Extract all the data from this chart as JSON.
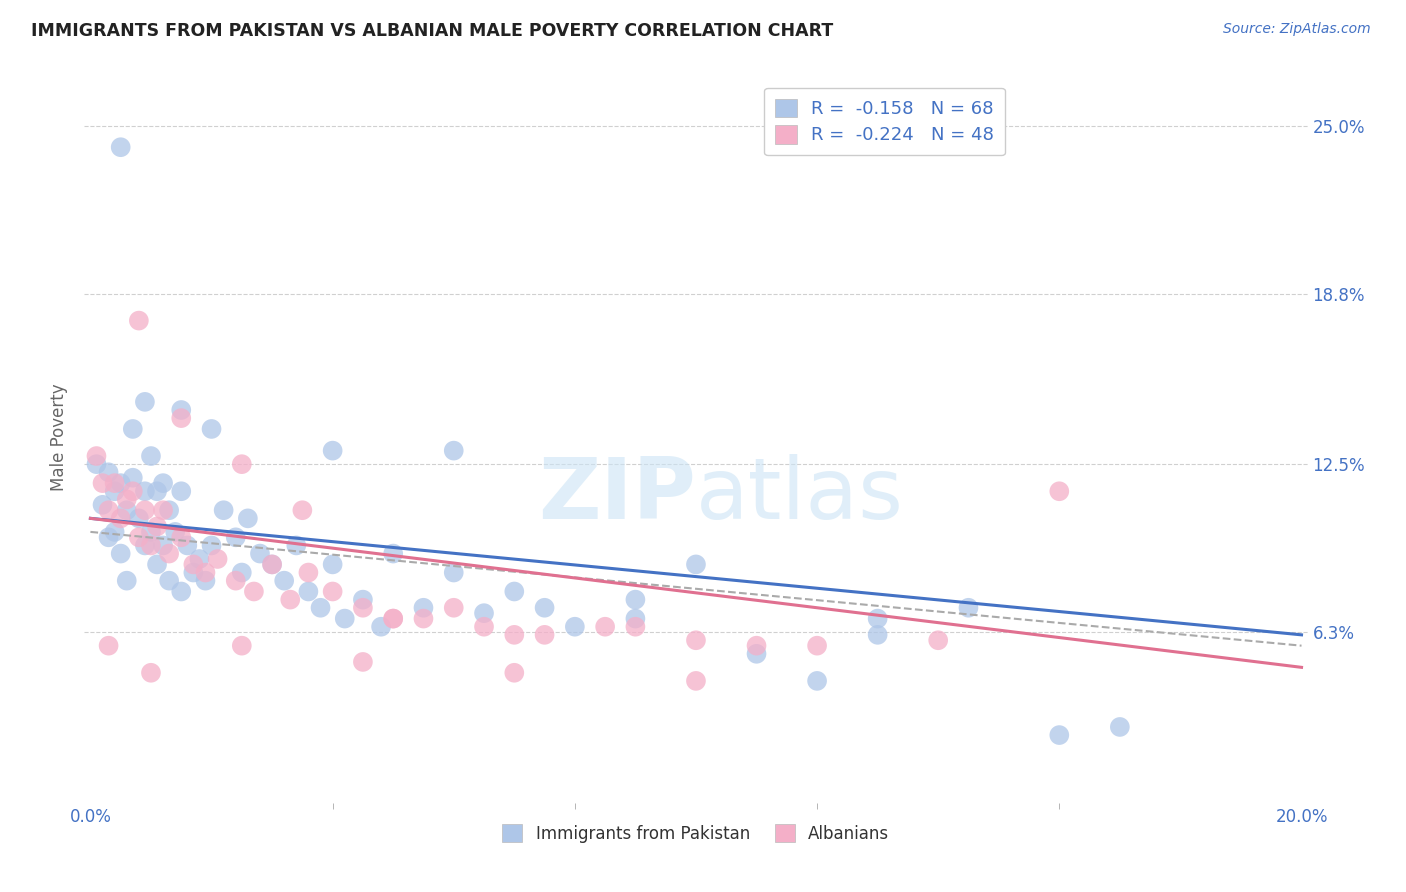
{
  "title": "IMMIGRANTS FROM PAKISTAN VS ALBANIAN MALE POVERTY CORRELATION CHART",
  "source": "Source: ZipAtlas.com",
  "ylabel": "Male Poverty",
  "ytick_vals": [
    0.063,
    0.125,
    0.188,
    0.25
  ],
  "ytick_labels": [
    "6.3%",
    "12.5%",
    "18.8%",
    "25.0%"
  ],
  "xlim": [
    0.0,
    0.2
  ],
  "ylim": [
    0.0,
    0.27
  ],
  "xtick_minor": [
    0.04,
    0.08,
    0.12,
    0.16
  ],
  "legend_r1": "R =  -0.158   N = 68",
  "legend_r2": "R =  -0.224   N = 48",
  "legend_label1": "Immigrants from Pakistan",
  "legend_label2": "Albanians",
  "blue_color": "#aec6e8",
  "pink_color": "#f4afc8",
  "line_blue": "#4472c4",
  "line_pink": "#e07090",
  "line_gray": "#aaaaaa",
  "text_color": "#4472c4",
  "grid_color": "#d0d0d0",
  "watermark_color": "#cce4f5",
  "pakistan_x": [
    0.001,
    0.002,
    0.003,
    0.003,
    0.004,
    0.004,
    0.005,
    0.005,
    0.006,
    0.006,
    0.007,
    0.007,
    0.008,
    0.009,
    0.009,
    0.01,
    0.01,
    0.011,
    0.011,
    0.012,
    0.012,
    0.013,
    0.013,
    0.014,
    0.015,
    0.015,
    0.016,
    0.017,
    0.018,
    0.019,
    0.02,
    0.022,
    0.024,
    0.025,
    0.026,
    0.028,
    0.03,
    0.032,
    0.034,
    0.036,
    0.038,
    0.04,
    0.042,
    0.045,
    0.048,
    0.05,
    0.055,
    0.06,
    0.065,
    0.07,
    0.075,
    0.08,
    0.09,
    0.1,
    0.11,
    0.12,
    0.13,
    0.145,
    0.16,
    0.17,
    0.005,
    0.009,
    0.015,
    0.02,
    0.04,
    0.06,
    0.09,
    0.13
  ],
  "pakistan_y": [
    0.125,
    0.11,
    0.122,
    0.098,
    0.115,
    0.1,
    0.118,
    0.092,
    0.108,
    0.082,
    0.138,
    0.12,
    0.105,
    0.115,
    0.095,
    0.128,
    0.1,
    0.115,
    0.088,
    0.118,
    0.095,
    0.108,
    0.082,
    0.1,
    0.115,
    0.078,
    0.095,
    0.085,
    0.09,
    0.082,
    0.095,
    0.108,
    0.098,
    0.085,
    0.105,
    0.092,
    0.088,
    0.082,
    0.095,
    0.078,
    0.072,
    0.088,
    0.068,
    0.075,
    0.065,
    0.092,
    0.072,
    0.085,
    0.07,
    0.078,
    0.072,
    0.065,
    0.068,
    0.088,
    0.055,
    0.045,
    0.062,
    0.072,
    0.025,
    0.028,
    0.242,
    0.148,
    0.145,
    0.138,
    0.13,
    0.13,
    0.075,
    0.068
  ],
  "albanian_x": [
    0.001,
    0.002,
    0.003,
    0.004,
    0.005,
    0.006,
    0.007,
    0.008,
    0.009,
    0.01,
    0.011,
    0.012,
    0.013,
    0.015,
    0.017,
    0.019,
    0.021,
    0.024,
    0.027,
    0.03,
    0.033,
    0.036,
    0.04,
    0.045,
    0.05,
    0.055,
    0.06,
    0.065,
    0.075,
    0.085,
    0.1,
    0.12,
    0.14,
    0.16,
    0.008,
    0.015,
    0.025,
    0.035,
    0.05,
    0.07,
    0.09,
    0.11,
    0.003,
    0.01,
    0.025,
    0.045,
    0.07,
    0.1
  ],
  "albanian_y": [
    0.128,
    0.118,
    0.108,
    0.118,
    0.105,
    0.112,
    0.115,
    0.098,
    0.108,
    0.095,
    0.102,
    0.108,
    0.092,
    0.098,
    0.088,
    0.085,
    0.09,
    0.082,
    0.078,
    0.088,
    0.075,
    0.085,
    0.078,
    0.072,
    0.068,
    0.068,
    0.072,
    0.065,
    0.062,
    0.065,
    0.06,
    0.058,
    0.06,
    0.115,
    0.178,
    0.142,
    0.125,
    0.108,
    0.068,
    0.062,
    0.065,
    0.058,
    0.058,
    0.048,
    0.058,
    0.052,
    0.048,
    0.045
  ]
}
